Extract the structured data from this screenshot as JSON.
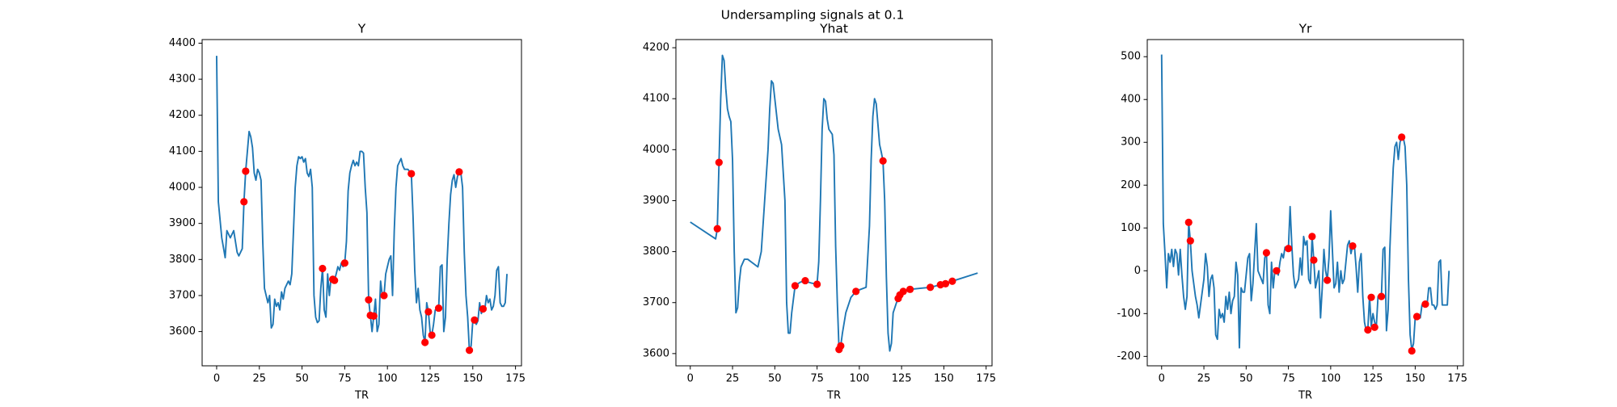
{
  "title": "Undersampling signals at 0.1",
  "chart_data": [
    {
      "type": "line",
      "title": "Y",
      "xlabel": "TR",
      "xlim": [
        -8.5,
        178.5
      ],
      "ylim": [
        3505,
        4410
      ],
      "xticks": [
        0,
        25,
        50,
        75,
        100,
        125,
        150,
        175
      ],
      "yticks": [
        3600,
        3700,
        3800,
        3900,
        4000,
        4100,
        4200,
        4300,
        4400
      ],
      "series": [
        {
          "type": "line",
          "color": "#1f77b4",
          "x": [
            0,
            1,
            3,
            5,
            6,
            8,
            10,
            12,
            13,
            15,
            16,
            17,
            18,
            19,
            20,
            21,
            22,
            23,
            24,
            25,
            26,
            27,
            28,
            29,
            30,
            31,
            32,
            33,
            34,
            35,
            36,
            37,
            38,
            39,
            40,
            42,
            43,
            44,
            45,
            46,
            47,
            48,
            49,
            50,
            51,
            52,
            53,
            54,
            55,
            56,
            57,
            58,
            59,
            60,
            61,
            62,
            63,
            64,
            65,
            66,
            67,
            68,
            69,
            70,
            71,
            72,
            73,
            74,
            75,
            76,
            77,
            78,
            79,
            80,
            81,
            82,
            83,
            84,
            85,
            86,
            87,
            88,
            89,
            90,
            91,
            92,
            93,
            94,
            95,
            96,
            97,
            98,
            99,
            100,
            101,
            102,
            103,
            104,
            105,
            106,
            107,
            108,
            109,
            110,
            112,
            114,
            115,
            116,
            117,
            118,
            119,
            120,
            121,
            122,
            123,
            124,
            125,
            126,
            127,
            128,
            129,
            130,
            131,
            132,
            133,
            134,
            135,
            136,
            137,
            138,
            139,
            140,
            141,
            142,
            143,
            144,
            145,
            146,
            147,
            148,
            149,
            150,
            151,
            152,
            153,
            154,
            155,
            156,
            157,
            158,
            159,
            160,
            161,
            162,
            163,
            164,
            165,
            166,
            167,
            168,
            169,
            170
          ],
          "values": [
            4365,
            3960,
            3860,
            3805,
            3880,
            3860,
            3880,
            3820,
            3810,
            3830,
            3960,
            4045,
            4100,
            4155,
            4140,
            4110,
            4040,
            4020,
            4050,
            4040,
            4020,
            3850,
            3720,
            3700,
            3680,
            3700,
            3610,
            3620,
            3690,
            3670,
            3680,
            3660,
            3710,
            3690,
            3720,
            3740,
            3730,
            3760,
            3880,
            4000,
            4060,
            4085,
            4080,
            4085,
            4070,
            4080,
            4040,
            4030,
            4050,
            4000,
            3700,
            3640,
            3625,
            3630,
            3720,
            3775,
            3660,
            3640,
            3760,
            3700,
            3750,
            3745,
            3742,
            3760,
            3780,
            3770,
            3790,
            3780,
            3790,
            3850,
            3990,
            4040,
            4060,
            4075,
            4060,
            4070,
            4060,
            4100,
            4100,
            4095,
            4000,
            3930,
            3688,
            3645,
            3600,
            3643,
            3690,
            3600,
            3620,
            3740,
            3700,
            3700,
            3760,
            3780,
            3800,
            3810,
            3700,
            3880,
            4000,
            4060,
            4070,
            4080,
            4060,
            4050,
            4050,
            4038,
            3920,
            3770,
            3680,
            3720,
            3660,
            3640,
            3590,
            3570,
            3680,
            3655,
            3600,
            3590,
            3620,
            3660,
            3660,
            3665,
            3780,
            3785,
            3600,
            3640,
            3800,
            3900,
            3980,
            4020,
            4035,
            4000,
            4030,
            4043,
            4040,
            4000,
            3820,
            3700,
            3640,
            3548,
            3560,
            3630,
            3632,
            3620,
            3630,
            3680,
            3650,
            3663,
            3660,
            3700,
            3680,
            3690,
            3660,
            3670,
            3700,
            3770,
            3780,
            3680,
            3670,
            3670,
            3680,
            3760
          ]
        },
        {
          "type": "scatter",
          "color": "#ff0000",
          "x": [
            16,
            17,
            62,
            68,
            69,
            75,
            89,
            90,
            92,
            98,
            114,
            122,
            124,
            126,
            130,
            142,
            148,
            151,
            156
          ],
          "values": [
            3960,
            4045,
            3775,
            3745,
            3742,
            3790,
            3688,
            3645,
            3643,
            3700,
            4038,
            3570,
            3655,
            3590,
            3665,
            4043,
            3548,
            3632,
            3663
          ]
        }
      ]
    },
    {
      "type": "line",
      "title": "Yhat",
      "xlabel": "TR",
      "xlim": [
        -8.5,
        178.5
      ],
      "ylim": [
        3576,
        4216
      ],
      "xticks": [
        0,
        25,
        50,
        75,
        100,
        125,
        150,
        175
      ],
      "yticks": [
        3600,
        3700,
        3800,
        3900,
        4000,
        4100,
        4200
      ],
      "series": [
        {
          "type": "line",
          "color": "#1f77b4",
          "x": [
            0,
            15,
            16,
            17,
            18,
            19,
            20,
            21,
            22,
            23,
            24,
            25,
            26,
            27,
            28,
            29,
            30,
            32,
            34,
            36,
            38,
            40,
            42,
            44,
            46,
            47,
            48,
            49,
            50,
            52,
            54,
            56,
            57,
            58,
            59,
            60,
            62,
            65,
            68,
            70,
            72,
            75,
            76,
            77,
            78,
            79,
            80,
            81,
            82,
            84,
            85,
            86,
            87,
            88,
            89,
            90,
            92,
            95,
            98,
            100,
            104,
            106,
            107,
            108,
            109,
            110,
            111,
            112,
            113,
            114,
            115,
            116,
            117,
            118,
            119,
            120,
            122,
            123,
            124,
            126,
            130,
            142,
            148,
            151,
            155,
            170
          ],
          "values": [
            3858,
            3825,
            3845,
            3975,
            4100,
            4185,
            4175,
            4120,
            4080,
            4065,
            4055,
            3980,
            3800,
            3680,
            3690,
            3740,
            3770,
            3785,
            3785,
            3780,
            3775,
            3770,
            3800,
            3900,
            4000,
            4080,
            4135,
            4130,
            4100,
            4040,
            4010,
            3900,
            3700,
            3640,
            3640,
            3680,
            3733,
            3740,
            3743,
            3740,
            3738,
            3736,
            3780,
            3900,
            4040,
            4100,
            4095,
            4060,
            4040,
            4030,
            3990,
            3810,
            3700,
            3608,
            3615,
            3640,
            3680,
            3710,
            3722,
            3725,
            3730,
            3850,
            3980,
            4065,
            4100,
            4090,
            4050,
            4010,
            3995,
            3978,
            3900,
            3750,
            3640,
            3605,
            3620,
            3680,
            3700,
            3708,
            3715,
            3722,
            3726,
            3730,
            3735,
            3737,
            3742,
            3758
          ]
        },
        {
          "type": "scatter",
          "color": "#ff0000",
          "x": [
            16,
            17,
            62,
            68,
            75,
            88,
            89,
            98,
            114,
            123,
            124,
            126,
            130,
            142,
            148,
            151,
            155
          ],
          "values": [
            3845,
            3975,
            3733,
            3743,
            3736,
            3608,
            3615,
            3722,
            3978,
            3708,
            3715,
            3722,
            3726,
            3730,
            3735,
            3737,
            3742
          ]
        }
      ]
    },
    {
      "type": "line",
      "title": "Yr",
      "xlabel": "TR",
      "xlim": [
        -8.5,
        178.5
      ],
      "ylim": [
        -222,
        540
      ],
      "xticks": [
        0,
        25,
        50,
        75,
        100,
        125,
        150,
        175
      ],
      "yticks": [
        -200,
        -100,
        0,
        100,
        200,
        300,
        400,
        500
      ],
      "series": [
        {
          "type": "line",
          "color": "#1f77b4",
          "x": [
            0,
            1,
            2,
            3,
            4,
            5,
            6,
            7,
            8,
            9,
            10,
            11,
            12,
            13,
            14,
            15,
            16,
            17,
            18,
            19,
            20,
            21,
            22,
            23,
            24,
            25,
            26,
            27,
            28,
            29,
            30,
            31,
            32,
            33,
            34,
            35,
            36,
            37,
            38,
            39,
            40,
            41,
            42,
            43,
            44,
            45,
            46,
            47,
            48,
            49,
            50,
            51,
            52,
            53,
            54,
            55,
            56,
            57,
            58,
            59,
            60,
            61,
            62,
            63,
            64,
            65,
            66,
            67,
            68,
            69,
            70,
            71,
            72,
            73,
            74,
            75,
            76,
            77,
            78,
            79,
            80,
            81,
            82,
            83,
            84,
            85,
            86,
            87,
            88,
            89,
            90,
            91,
            92,
            93,
            94,
            95,
            96,
            97,
            98,
            99,
            100,
            101,
            102,
            103,
            104,
            105,
            106,
            107,
            108,
            109,
            110,
            111,
            112,
            113,
            114,
            115,
            116,
            117,
            118,
            119,
            120,
            121,
            122,
            123,
            124,
            125,
            126,
            127,
            128,
            129,
            130,
            131,
            132,
            133,
            134,
            135,
            136,
            137,
            138,
            139,
            140,
            141,
            142,
            143,
            144,
            145,
            146,
            147,
            148,
            149,
            150,
            151,
            152,
            153,
            154,
            155,
            156,
            157,
            158,
            159,
            160,
            161,
            162,
            163,
            164,
            165,
            166,
            167,
            168,
            169,
            170
          ],
          "values": [
            505,
            110,
            40,
            -40,
            40,
            20,
            50,
            10,
            50,
            40,
            -10,
            50,
            -10,
            -60,
            -90,
            -60,
            113,
            70,
            0,
            -30,
            -60,
            -80,
            -110,
            -80,
            -50,
            -20,
            40,
            10,
            -60,
            -20,
            -10,
            -40,
            -150,
            -160,
            -90,
            -110,
            -100,
            -120,
            -60,
            -90,
            -50,
            -100,
            -70,
            -60,
            20,
            -10,
            -180,
            -40,
            -50,
            -50,
            -10,
            30,
            40,
            -70,
            -30,
            40,
            110,
            0,
            -10,
            -20,
            -30,
            30,
            42,
            -80,
            -100,
            20,
            -40,
            0,
            0,
            -10,
            20,
            40,
            30,
            55,
            50,
            52,
            150,
            60,
            -10,
            -40,
            -30,
            -20,
            30,
            -10,
            80,
            60,
            70,
            -20,
            -30,
            80,
            25,
            -40,
            -20,
            0,
            -110,
            -40,
            50,
            0,
            -22,
            30,
            140,
            50,
            -40,
            -30,
            20,
            -50,
            0,
            -30,
            -20,
            20,
            60,
            70,
            40,
            58,
            60,
            10,
            -50,
            20,
            40,
            -60,
            -120,
            -140,
            -135,
            -60,
            -130,
            -100,
            -120,
            -130,
            -60,
            -60,
            -60,
            50,
            55,
            -140,
            -90,
            50,
            150,
            240,
            290,
            300,
            260,
            300,
            312,
            310,
            290,
            200,
            -20,
            -150,
            -185,
            -170,
            -110,
            -107,
            -110,
            -110,
            -80,
            -80,
            -78,
            -80,
            -40,
            -40,
            -80,
            -80,
            -90,
            -80,
            20,
            25,
            -80,
            -80,
            -80,
            -80,
            0
          ]
        },
        {
          "type": "scatter",
          "color": "#ff0000",
          "x": [
            16,
            17,
            62,
            68,
            75,
            89,
            90,
            98,
            113,
            122,
            124,
            126,
            130,
            142,
            148,
            151,
            156
          ],
          "values": [
            113,
            70,
            42,
            0,
            52,
            80,
            25,
            -22,
            58,
            -138,
            -62,
            -132,
            -60,
            312,
            -187,
            -107,
            -78
          ]
        }
      ]
    }
  ]
}
